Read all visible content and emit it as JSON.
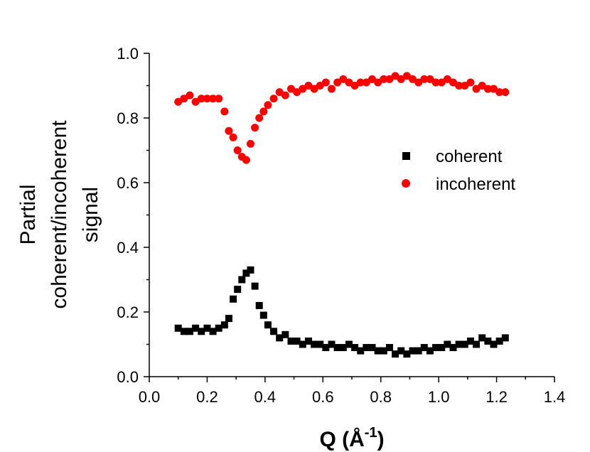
{
  "chart_data": {
    "type": "scatter",
    "title": "",
    "xlabel": "Q (Å-1)",
    "xlabel_parts": {
      "main": "Q (Å",
      "superscript": "-1",
      "tail": ")"
    },
    "ylabel_lines": [
      "Partial",
      "coherent/incoherent",
      "signal"
    ],
    "xlim": [
      0.0,
      1.4
    ],
    "ylim": [
      0.0,
      1.0
    ],
    "xticks": [
      "0.0",
      "0.2",
      "0.4",
      "0.6",
      "0.8",
      "1.0",
      "1.2",
      "1.4"
    ],
    "yticks": [
      "0.0",
      "0.2",
      "0.4",
      "0.6",
      "0.8",
      "1.0"
    ],
    "legend_position": "center-right",
    "series": [
      {
        "name": "coherent",
        "marker": "square",
        "color": "#000000",
        "x": [
          0.1,
          0.12,
          0.14,
          0.16,
          0.18,
          0.2,
          0.22,
          0.24,
          0.26,
          0.275,
          0.29,
          0.305,
          0.32,
          0.335,
          0.35,
          0.365,
          0.38,
          0.395,
          0.41,
          0.43,
          0.45,
          0.47,
          0.49,
          0.51,
          0.53,
          0.55,
          0.57,
          0.59,
          0.61,
          0.63,
          0.65,
          0.67,
          0.69,
          0.71,
          0.73,
          0.75,
          0.77,
          0.79,
          0.81,
          0.83,
          0.85,
          0.87,
          0.89,
          0.91,
          0.93,
          0.95,
          0.97,
          0.99,
          1.01,
          1.03,
          1.05,
          1.07,
          1.09,
          1.11,
          1.13,
          1.15,
          1.17,
          1.19,
          1.21,
          1.23
        ],
        "y": [
          0.15,
          0.14,
          0.14,
          0.15,
          0.14,
          0.15,
          0.14,
          0.15,
          0.16,
          0.18,
          0.24,
          0.27,
          0.3,
          0.32,
          0.33,
          0.28,
          0.22,
          0.19,
          0.16,
          0.14,
          0.12,
          0.13,
          0.11,
          0.11,
          0.1,
          0.11,
          0.1,
          0.1,
          0.09,
          0.1,
          0.09,
          0.09,
          0.1,
          0.09,
          0.08,
          0.09,
          0.09,
          0.08,
          0.08,
          0.09,
          0.07,
          0.08,
          0.07,
          0.08,
          0.08,
          0.09,
          0.08,
          0.09,
          0.09,
          0.1,
          0.09,
          0.1,
          0.1,
          0.11,
          0.1,
          0.12,
          0.11,
          0.1,
          0.11,
          0.12
        ]
      },
      {
        "name": "incoherent",
        "marker": "circle",
        "color": "#ff0000",
        "x": [
          0.1,
          0.12,
          0.14,
          0.16,
          0.18,
          0.2,
          0.22,
          0.24,
          0.26,
          0.275,
          0.29,
          0.305,
          0.32,
          0.335,
          0.35,
          0.365,
          0.38,
          0.395,
          0.41,
          0.43,
          0.45,
          0.47,
          0.49,
          0.51,
          0.53,
          0.55,
          0.57,
          0.59,
          0.61,
          0.63,
          0.65,
          0.67,
          0.69,
          0.71,
          0.73,
          0.75,
          0.77,
          0.79,
          0.81,
          0.83,
          0.85,
          0.87,
          0.89,
          0.91,
          0.93,
          0.95,
          0.97,
          0.99,
          1.01,
          1.03,
          1.05,
          1.07,
          1.09,
          1.11,
          1.13,
          1.15,
          1.17,
          1.19,
          1.21,
          1.23
        ],
        "y": [
          0.85,
          0.86,
          0.87,
          0.85,
          0.86,
          0.86,
          0.86,
          0.86,
          0.82,
          0.76,
          0.74,
          0.7,
          0.68,
          0.67,
          0.72,
          0.77,
          0.8,
          0.82,
          0.84,
          0.86,
          0.88,
          0.87,
          0.89,
          0.88,
          0.89,
          0.9,
          0.89,
          0.9,
          0.91,
          0.89,
          0.91,
          0.92,
          0.91,
          0.9,
          0.91,
          0.91,
          0.92,
          0.91,
          0.92,
          0.92,
          0.93,
          0.92,
          0.93,
          0.92,
          0.91,
          0.92,
          0.92,
          0.91,
          0.91,
          0.92,
          0.91,
          0.9,
          0.9,
          0.91,
          0.89,
          0.9,
          0.89,
          0.89,
          0.88,
          0.88
        ]
      }
    ]
  }
}
